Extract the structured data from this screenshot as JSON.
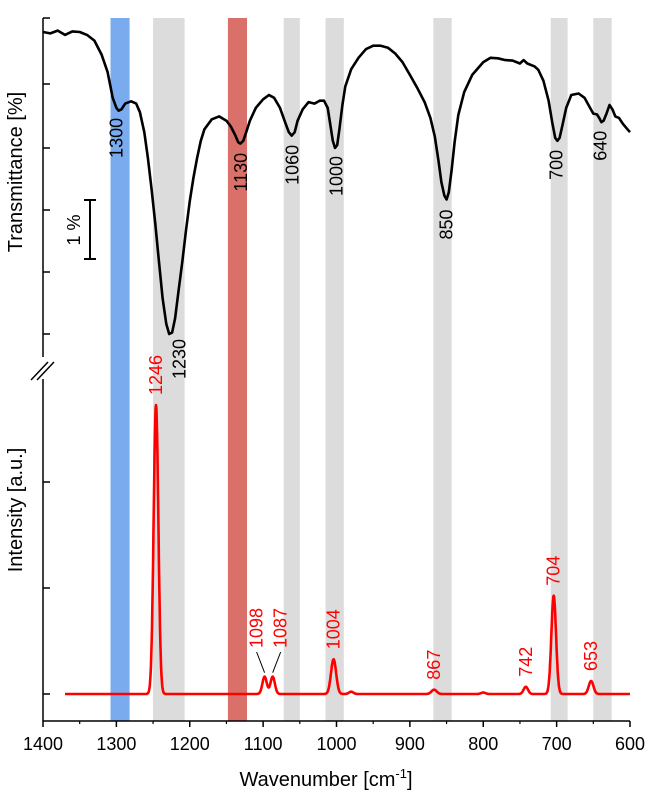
{
  "chart_data": {
    "type": "line",
    "xlabel": "Wavenumber [cm",
    "xlabel_sup": "-1",
    "xlabel_end": "]",
    "xlim": [
      1400,
      600
    ],
    "x_ticks": [
      1400,
      1300,
      1200,
      1100,
      1000,
      900,
      800,
      700,
      600
    ],
    "panels": {
      "ir": {
        "ylabel": "Transmittance [%]",
        "scale_bar_label": "1 %",
        "line_color": "#000000",
        "spectrum": [
          [
            1400,
            95.7
          ],
          [
            1390,
            95.65
          ],
          [
            1380,
            95.75
          ],
          [
            1370,
            95.6
          ],
          [
            1360,
            95.72
          ],
          [
            1350,
            95.7
          ],
          [
            1340,
            95.6
          ],
          [
            1330,
            95.4
          ],
          [
            1320,
            94.9
          ],
          [
            1312,
            94.3
          ],
          [
            1305,
            93.4
          ],
          [
            1300,
            93.05
          ],
          [
            1297,
            92.95
          ],
          [
            1293,
            93.0
          ],
          [
            1288,
            93.2
          ],
          [
            1280,
            93.28
          ],
          [
            1273,
            93.2
          ],
          [
            1268,
            92.9
          ],
          [
            1262,
            92.2
          ],
          [
            1257,
            91.3
          ],
          [
            1252,
            90.2
          ],
          [
            1247,
            89.0
          ],
          [
            1242,
            87.7
          ],
          [
            1237,
            86.4
          ],
          [
            1232,
            85.5
          ],
          [
            1228,
            85.15
          ],
          [
            1224,
            85.2
          ],
          [
            1220,
            85.7
          ],
          [
            1215,
            86.7
          ],
          [
            1210,
            87.7
          ],
          [
            1205,
            88.8
          ],
          [
            1200,
            89.8
          ],
          [
            1195,
            90.6
          ],
          [
            1190,
            91.3
          ],
          [
            1185,
            91.9
          ],
          [
            1180,
            92.3
          ],
          [
            1170,
            92.65
          ],
          [
            1160,
            92.75
          ],
          [
            1150,
            92.6
          ],
          [
            1144,
            92.4
          ],
          [
            1138,
            92.1
          ],
          [
            1134,
            91.85
          ],
          [
            1131,
            91.8
          ],
          [
            1127,
            91.9
          ],
          [
            1123,
            92.2
          ],
          [
            1118,
            92.6
          ],
          [
            1110,
            93.05
          ],
          [
            1100,
            93.35
          ],
          [
            1092,
            93.5
          ],
          [
            1085,
            93.4
          ],
          [
            1077,
            93.05
          ],
          [
            1070,
            92.55
          ],
          [
            1065,
            92.2
          ],
          [
            1061,
            92.08
          ],
          [
            1057,
            92.2
          ],
          [
            1053,
            92.6
          ],
          [
            1046,
            93.0
          ],
          [
            1038,
            93.25
          ],
          [
            1030,
            93.2
          ],
          [
            1023,
            93.3
          ],
          [
            1017,
            93.3
          ],
          [
            1012,
            93.05
          ],
          [
            1008,
            92.4
          ],
          [
            1005,
            91.9
          ],
          [
            1002,
            91.65
          ],
          [
            999,
            91.75
          ],
          [
            996,
            92.3
          ],
          [
            992,
            93.15
          ],
          [
            988,
            93.8
          ],
          [
            980,
            94.4
          ],
          [
            970,
            94.8
          ],
          [
            960,
            95.1
          ],
          [
            950,
            95.22
          ],
          [
            940,
            95.22
          ],
          [
            930,
            95.15
          ],
          [
            920,
            94.95
          ],
          [
            910,
            94.65
          ],
          [
            900,
            94.2
          ],
          [
            890,
            93.75
          ],
          [
            880,
            93.25
          ],
          [
            872,
            92.7
          ],
          [
            866,
            92.05
          ],
          [
            861,
            91.2
          ],
          [
            857,
            90.45
          ],
          [
            853,
            89.98
          ],
          [
            850,
            89.85
          ],
          [
            847,
            90.1
          ],
          [
            843,
            90.9
          ],
          [
            839,
            91.85
          ],
          [
            834,
            92.8
          ],
          [
            826,
            93.6
          ],
          [
            815,
            94.2
          ],
          [
            800,
            94.65
          ],
          [
            790,
            94.8
          ],
          [
            780,
            94.78
          ],
          [
            770,
            94.72
          ],
          [
            760,
            94.7
          ],
          [
            750,
            94.6
          ],
          [
            745,
            94.72
          ],
          [
            740,
            94.6
          ],
          [
            730,
            94.5
          ],
          [
            725,
            94.38
          ],
          [
            718,
            94.0
          ],
          [
            711,
            93.3
          ],
          [
            706,
            92.55
          ],
          [
            702,
            92.0
          ],
          [
            699,
            91.9
          ],
          [
            696,
            92.0
          ],
          [
            692,
            92.45
          ],
          [
            687,
            93.05
          ],
          [
            680,
            93.5
          ],
          [
            670,
            93.55
          ],
          [
            662,
            93.4
          ],
          [
            655,
            93.08
          ],
          [
            650,
            92.85
          ],
          [
            645,
            92.82
          ],
          [
            642,
            92.7
          ],
          [
            639,
            92.55
          ],
          [
            636,
            92.6
          ],
          [
            632,
            92.85
          ],
          [
            628,
            93.15
          ],
          [
            624,
            93.0
          ],
          [
            620,
            92.75
          ],
          [
            615,
            92.7
          ],
          [
            610,
            92.5
          ],
          [
            605,
            92.35
          ],
          [
            600,
            92.2
          ]
        ],
        "peak_labels": [
          {
            "x": 1300,
            "text": "1300"
          },
          {
            "x": 1230,
            "text": "1230"
          },
          {
            "x": 1130,
            "text": "1130"
          },
          {
            "x": 1060,
            "text": "1060"
          },
          {
            "x": 1000,
            "text": "1000"
          },
          {
            "x": 850,
            "text": "850"
          },
          {
            "x": 700,
            "text": "700"
          },
          {
            "x": 640,
            "text": "640"
          }
        ]
      },
      "raman": {
        "ylabel": "Intensity [a.u.]",
        "line_color": "#ff0000",
        "baseline": 0,
        "peaks": [
          {
            "x": 1246,
            "height": 1.0,
            "width": 3.2
          },
          {
            "x": 1098,
            "height": 0.06,
            "width": 3.0
          },
          {
            "x": 1087,
            "height": 0.06,
            "width": 3.0
          },
          {
            "x": 1004,
            "height": 0.12,
            "width": 3.5
          },
          {
            "x": 980,
            "height": 0.008,
            "width": 3.0
          },
          {
            "x": 867,
            "height": 0.015,
            "width": 3.5
          },
          {
            "x": 800,
            "height": 0.005,
            "width": 3.0
          },
          {
            "x": 742,
            "height": 0.025,
            "width": 3.0
          },
          {
            "x": 704,
            "height": 0.34,
            "width": 3.2
          },
          {
            "x": 653,
            "height": 0.045,
            "width": 3.2
          }
        ],
        "x_start": 1370,
        "peak_labels": [
          {
            "x": 1246,
            "text": "1246"
          },
          {
            "x": 1098,
            "text": "1098"
          },
          {
            "x": 1087,
            "text": "1087"
          },
          {
            "x": 1004,
            "text": "1004"
          },
          {
            "x": 867,
            "text": "867"
          },
          {
            "x": 742,
            "text": "742"
          },
          {
            "x": 704,
            "text": "704"
          },
          {
            "x": 653,
            "text": "653"
          }
        ]
      }
    },
    "bands": [
      {
        "from": 1308,
        "to": 1282,
        "color": "#7aabee"
      },
      {
        "from": 1250,
        "to": 1207,
        "color": "#dcdcdc"
      },
      {
        "from": 1148,
        "to": 1122,
        "color": "#d9706a"
      },
      {
        "from": 1072,
        "to": 1050,
        "color": "#dcdcdc"
      },
      {
        "from": 1015,
        "to": 990,
        "color": "#dcdcdc"
      },
      {
        "from": 868,
        "to": 843,
        "color": "#dcdcdc"
      },
      {
        "from": 708,
        "to": 685,
        "color": "#dcdcdc"
      },
      {
        "from": 650,
        "to": 625,
        "color": "#dcdcdc"
      }
    ],
    "grid": false
  }
}
